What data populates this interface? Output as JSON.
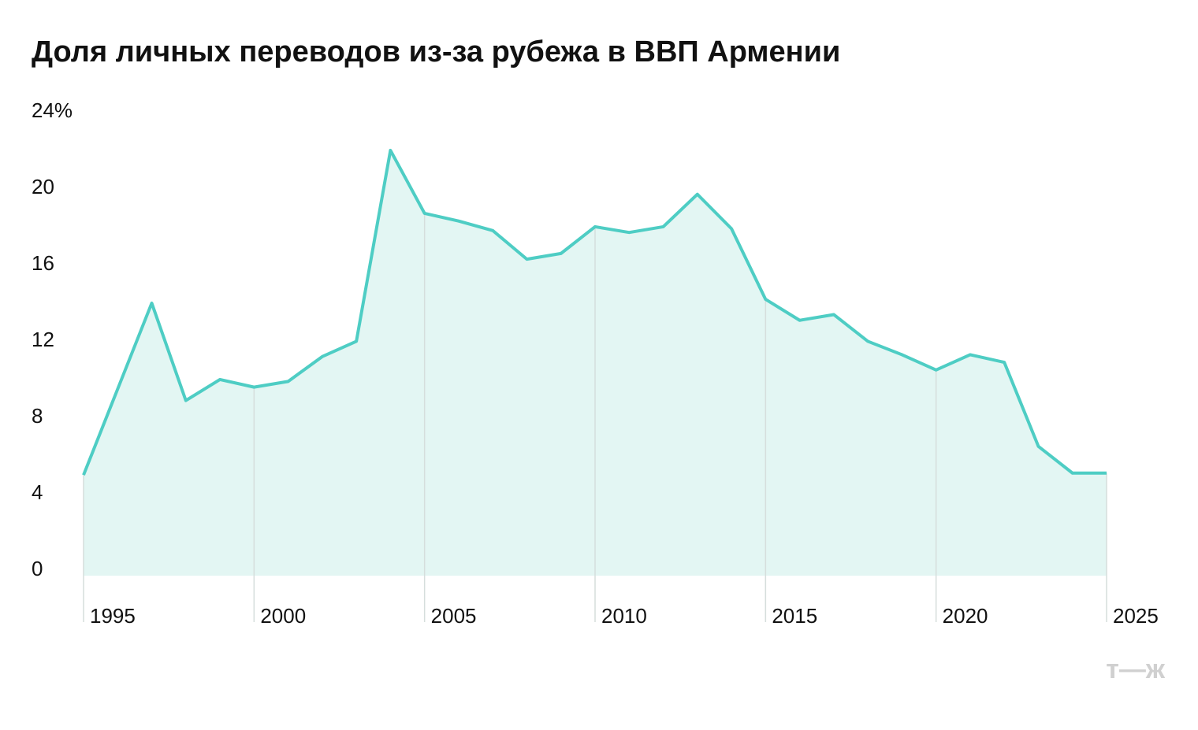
{
  "chart_data": {
    "type": "area",
    "title": "Доля личных переводов из-за рубежа в ВВП Армении",
    "x": [
      1995,
      1996,
      1997,
      1998,
      1999,
      2000,
      2001,
      2002,
      2003,
      2004,
      2005,
      2006,
      2007,
      2008,
      2009,
      2010,
      2011,
      2012,
      2013,
      2014,
      2015,
      2016,
      2017,
      2018,
      2019,
      2020,
      2021,
      2022,
      2023,
      2024,
      2025
    ],
    "values": [
      4.9,
      9.4,
      13.9,
      8.8,
      9.9,
      9.5,
      9.8,
      11.1,
      11.9,
      21.9,
      18.6,
      18.2,
      17.7,
      16.2,
      16.5,
      17.9,
      17.6,
      17.9,
      19.6,
      17.8,
      14.1,
      13.0,
      13.3,
      11.9,
      11.2,
      10.4,
      11.2,
      10.8,
      6.4,
      5.0,
      5.0
    ],
    "color": "#4ecdc4",
    "fill": "#e3f6f3",
    "xlim": [
      1995,
      2025
    ],
    "xticks": [
      1995,
      2000,
      2005,
      2010,
      2015,
      2020,
      2025
    ],
    "ylim": [
      0,
      24
    ],
    "yticks": [
      0,
      4,
      8,
      12,
      16,
      20,
      {
        "value": 24,
        "label": "24%"
      }
    ],
    "logo": "т—ж"
  }
}
